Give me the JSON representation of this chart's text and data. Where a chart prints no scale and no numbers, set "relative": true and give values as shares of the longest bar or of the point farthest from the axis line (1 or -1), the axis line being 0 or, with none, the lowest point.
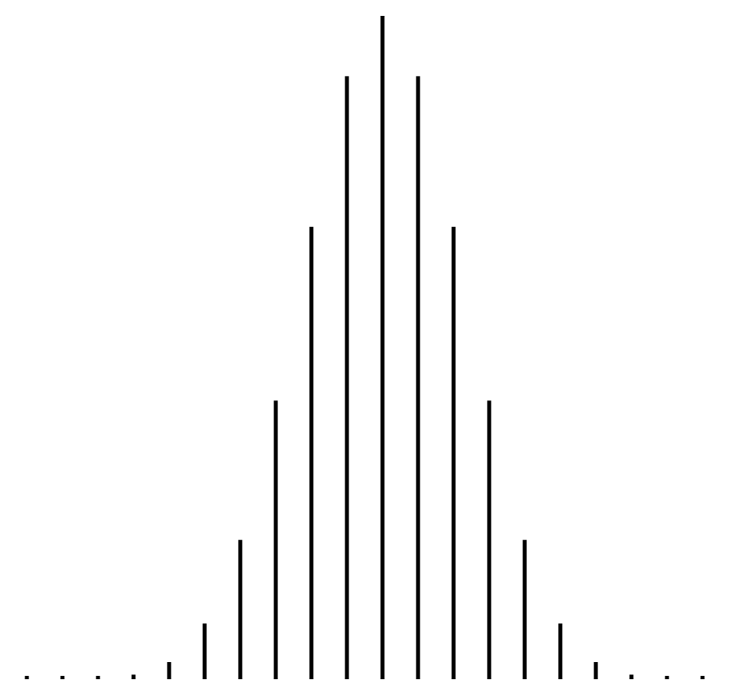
{
  "chart_data": {
    "type": "bar",
    "relative": true,
    "categories": [
      null,
      null,
      null,
      null,
      null,
      null,
      null,
      null,
      null,
      null,
      null,
      null,
      null,
      null,
      null,
      null,
      null,
      null,
      null,
      null
    ],
    "values": [
      0.005,
      0.005,
      0.005,
      0.007,
      0.026,
      0.084,
      0.21,
      0.42,
      0.682,
      0.909,
      1,
      0.909,
      0.682,
      0.42,
      0.21,
      0.084,
      0.026,
      0.007,
      0.005,
      0.005
    ],
    "color": "#000000"
  }
}
